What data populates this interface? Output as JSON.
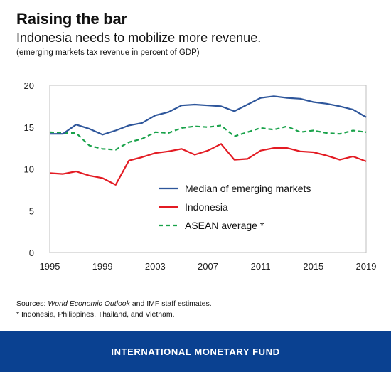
{
  "header": {
    "title": "Raising the bar",
    "subtitle": "Indonesia needs to mobilize more revenue.",
    "note": "(emerging markets tax revenue in percent of GDP)"
  },
  "sources": {
    "prefix": "Sources: ",
    "italic": "World Economic Outlook",
    "suffix": " and IMF staff estimates.",
    "footnote": "* Indonesia, Philippines, Thailand, and Vietnam."
  },
  "footer": {
    "label": "INTERNATIONAL MONETARY FUND"
  },
  "colors": {
    "median": "#2e569b",
    "indonesia": "#e31b23",
    "asean": "#19a24a",
    "footer_bg": "#0a4191"
  },
  "chart_data": {
    "type": "line",
    "title": "Raising the bar",
    "subtitle": "Indonesia needs to mobilize more revenue.",
    "xlabel": "",
    "ylabel": "",
    "ylim": [
      0,
      20
    ],
    "xlim": [
      1995,
      2019
    ],
    "xticks": [
      1995,
      1999,
      2003,
      2007,
      2011,
      2015,
      2019
    ],
    "yticks": [
      0,
      5,
      10,
      15,
      20
    ],
    "grid": false,
    "legend_position": "center-right",
    "x": [
      1995,
      1996,
      1997,
      1998,
      1999,
      2000,
      2001,
      2002,
      2003,
      2004,
      2005,
      2006,
      2007,
      2008,
      2009,
      2010,
      2011,
      2012,
      2013,
      2014,
      2015,
      2016,
      2017,
      2018,
      2019
    ],
    "series": [
      {
        "name": "Median of emerging markets",
        "color": "#2e569b",
        "style": "solid",
        "values": [
          14.2,
          14.2,
          15.3,
          14.8,
          14.1,
          14.6,
          15.2,
          15.5,
          16.4,
          16.8,
          17.6,
          17.7,
          17.6,
          17.5,
          16.9,
          17.7,
          18.5,
          18.7,
          18.5,
          18.4,
          18.0,
          17.8,
          17.5,
          17.1,
          16.2
        ]
      },
      {
        "name": "Indonesia",
        "color": "#e31b23",
        "style": "solid",
        "values": [
          9.5,
          9.4,
          9.7,
          9.2,
          8.9,
          8.1,
          11.0,
          11.4,
          11.9,
          12.1,
          12.4,
          11.7,
          12.2,
          13.0,
          11.1,
          11.2,
          12.2,
          12.5,
          12.5,
          12.1,
          12.0,
          11.6,
          11.1,
          11.5,
          10.9
        ]
      },
      {
        "name": "ASEAN average *",
        "color": "#19a24a",
        "style": "dashed",
        "values": [
          14.4,
          14.3,
          14.3,
          12.8,
          12.4,
          12.3,
          13.2,
          13.6,
          14.4,
          14.3,
          14.9,
          15.1,
          15.0,
          15.2,
          13.9,
          14.4,
          14.9,
          14.7,
          15.1,
          14.4,
          14.6,
          14.3,
          14.2,
          14.6,
          14.4
        ]
      }
    ]
  }
}
